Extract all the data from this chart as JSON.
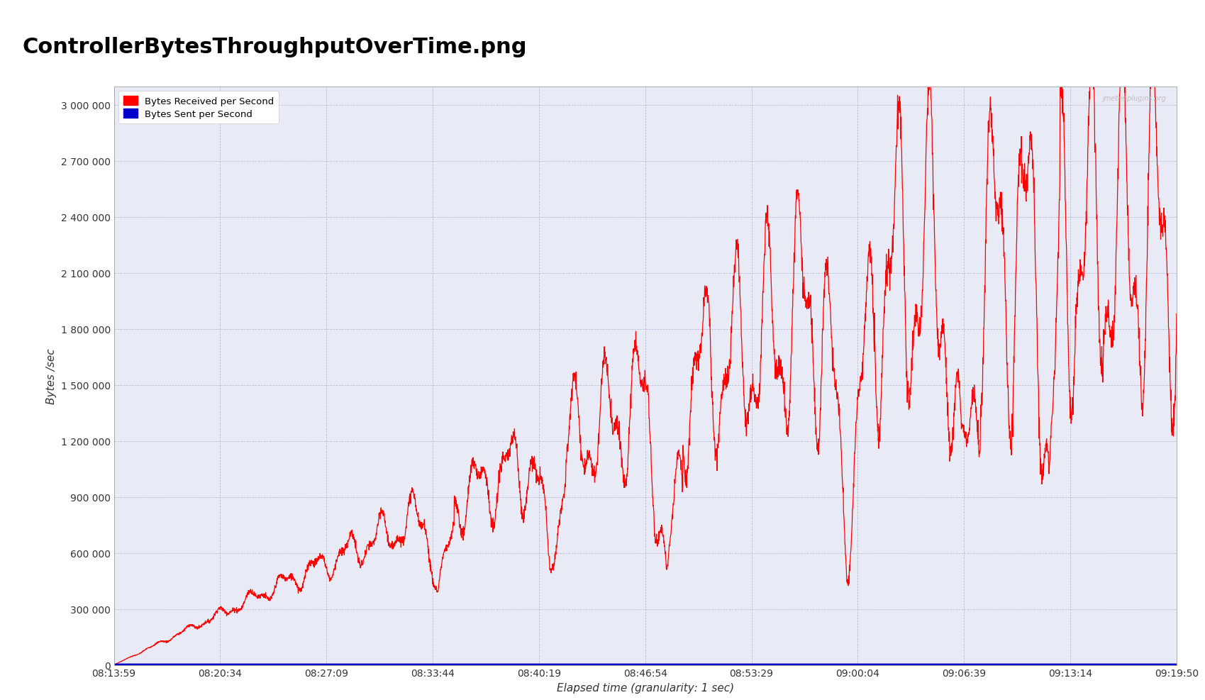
{
  "title": "ControllerBytesThroughputOverTime.png",
  "xlabel": "Elapsed time (granularity: 1 sec)",
  "ylabel": "Bytes /sec",
  "watermark": "jmeter-plugins.org",
  "legend": [
    {
      "label": "Bytes Received per Second",
      "color": "#FF0000"
    },
    {
      "label": "Bytes Sent per Second",
      "color": "#0000CC"
    }
  ],
  "yticks": [
    0,
    300000,
    600000,
    900000,
    1200000,
    1500000,
    1800000,
    2100000,
    2400000,
    2700000,
    3000000
  ],
  "ytick_labels": [
    "0",
    "300 000",
    "600 000",
    "900 000",
    "1 200 000",
    "1 500 000",
    "1 800 000",
    "2 100 000",
    "2 400 000",
    "2 700 000",
    "3 000 000"
  ],
  "xticks_labels": [
    "08:13:59",
    "08:20:34",
    "08:27:09",
    "08:33:44",
    "08:40:19",
    "08:46:54",
    "08:53:29",
    "09:00:04",
    "09:06:39",
    "09:13:14",
    "09:19:50"
  ],
  "ylim": [
    0,
    3100000
  ],
  "plot_bg_color": "#E8EBF5",
  "title_fontsize": 22,
  "axis_fontsize": 11,
  "tick_fontsize": 10,
  "line_width": 1.0,
  "n_points": 3951
}
